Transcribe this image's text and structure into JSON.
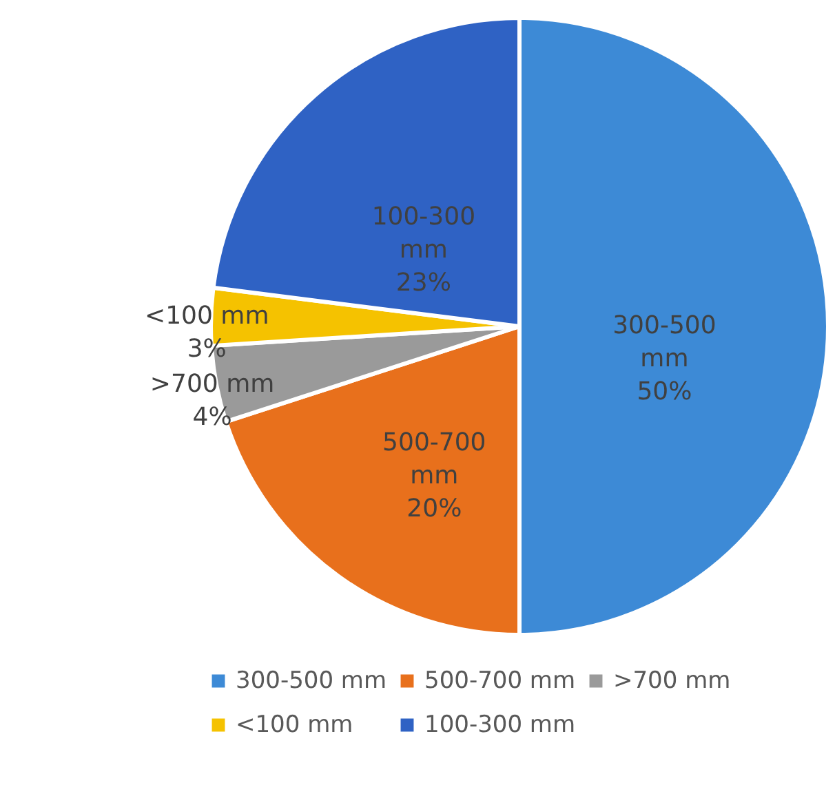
{
  "chart_data": {
    "type": "pie",
    "categories": [
      "300-500 mm",
      "500-700 mm",
      ">700 mm",
      "<100 mm",
      "100-300 mm"
    ],
    "values": [
      50,
      20,
      4,
      3,
      23
    ],
    "value_labels": [
      "50%",
      "20%",
      "4%",
      "3%",
      "23%"
    ],
    "colors": [
      "#3d8ad6",
      "#e8701c",
      "#9a9a9a",
      "#f5c200",
      "#2f62c4"
    ],
    "legend": "bottom"
  }
}
